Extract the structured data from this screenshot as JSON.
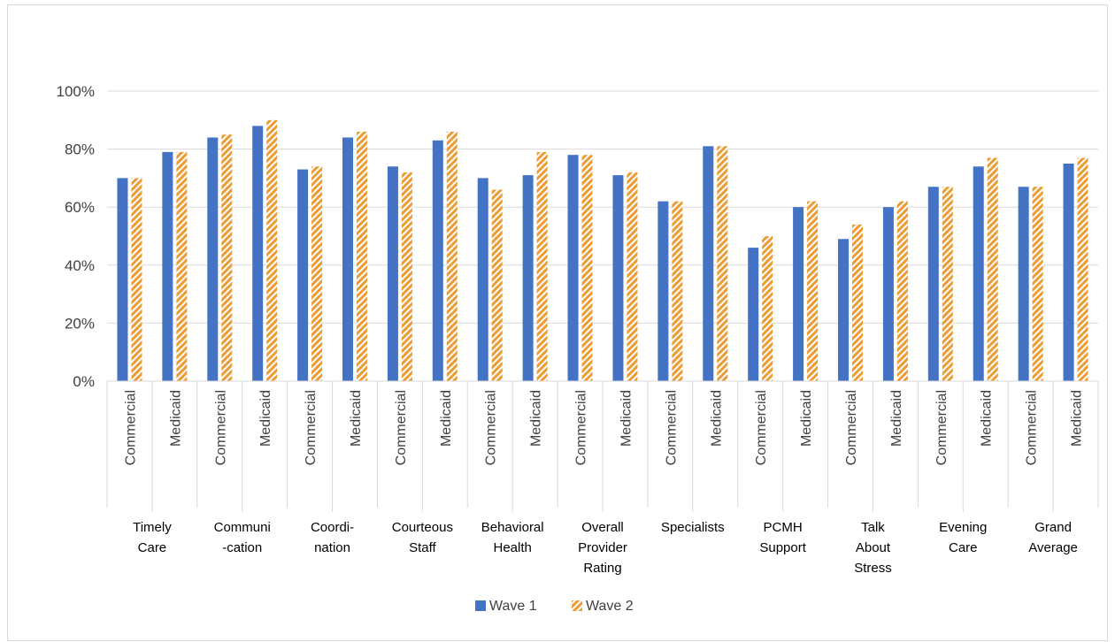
{
  "chart_data": {
    "type": "bar",
    "title": "",
    "xlabel": "",
    "ylabel": "",
    "ylim": [
      0,
      1
    ],
    "y_ticks": [
      "0%",
      "20%",
      "40%",
      "60%",
      "80%",
      "100%"
    ],
    "grid": true,
    "legend_position": "bottom",
    "groups": [
      "Timely Care",
      "Communi -cation",
      "Coordi- nation",
      "Courteous Staff",
      "Behavioral Health",
      "Overall Provider Rating",
      "Specialists",
      "PCMH Support",
      "Talk About Stress",
      "Evening Care",
      "Grand Average"
    ],
    "group_label_lines": [
      [
        "Timely",
        "Care"
      ],
      [
        "Communi",
        "-cation"
      ],
      [
        "Coordi-",
        "nation"
      ],
      [
        "Courteous",
        "Staff"
      ],
      [
        "Behavioral",
        "Health"
      ],
      [
        "Overall",
        "Provider",
        "Rating"
      ],
      [
        "Specialists"
      ],
      [
        "PCMH",
        "Support"
      ],
      [
        "Talk",
        "About",
        "Stress"
      ],
      [
        "Evening",
        "Care"
      ],
      [
        "Grand",
        "Average"
      ]
    ],
    "subcategories": [
      "Commercial",
      "Medicaid"
    ],
    "series": [
      {
        "name": "Wave 1",
        "color": "#4472C4",
        "pattern": "solid",
        "values": [
          0.7,
          0.79,
          0.84,
          0.88,
          0.73,
          0.84,
          0.74,
          0.83,
          0.7,
          0.71,
          0.78,
          0.71,
          0.62,
          0.81,
          0.46,
          0.6,
          0.49,
          0.6,
          0.67,
          0.74,
          0.67,
          0.75
        ]
      },
      {
        "name": "Wave 2",
        "color": "#ED9B33",
        "pattern": "diagonal-hatch",
        "values": [
          0.7,
          0.79,
          0.85,
          0.9,
          0.74,
          0.86,
          0.72,
          0.86,
          0.66,
          0.79,
          0.78,
          0.72,
          0.62,
          0.81,
          0.5,
          0.62,
          0.54,
          0.62,
          0.67,
          0.77,
          0.67,
          0.77
        ]
      }
    ]
  }
}
